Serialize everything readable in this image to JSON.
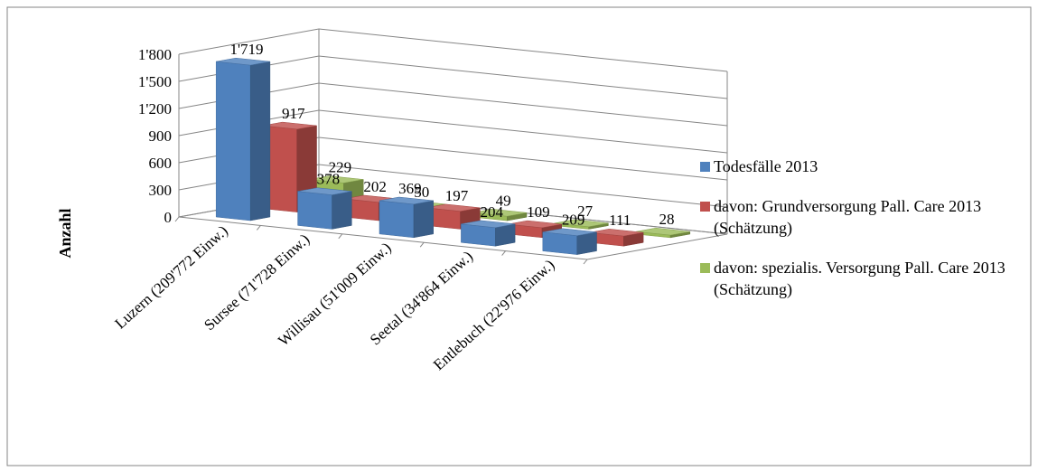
{
  "chart_data": {
    "type": "bar",
    "title": "",
    "xlabel": "",
    "ylabel": "Anzahl",
    "ylim": [
      0,
      1800
    ],
    "yticks": [
      "0",
      "300",
      "600",
      "900",
      "1'200",
      "1'500",
      "1'800"
    ],
    "grid": true,
    "legend_position": "right",
    "categories": [
      "Luzern (209'772 Einw.)",
      "Sursee (71'728 Einw.)",
      "Willisau (51'009 Einw.)",
      "Seetal (34'864 Einw.)",
      "Entlebuch (22'976 Einw.)"
    ],
    "series": [
      {
        "name": "Todesfälle 2013",
        "values": [
          1719,
          378,
          369,
          204,
          209
        ],
        "labels": [
          "1'719",
          "378",
          "369",
          "204",
          "209"
        ],
        "color": "#4f81bd"
      },
      {
        "name": "davon: Grundversorgung Pall. Care 2013 (Schätzung)",
        "values": [
          917,
          202,
          197,
          109,
          111
        ],
        "labels": [
          "917",
          "202",
          "197",
          "109",
          "111"
        ],
        "color": "#c0504d"
      },
      {
        "name": "davon: spezialis. Versorgung Pall. Care 2013 (Schätzung)",
        "values": [
          229,
          50,
          49,
          27,
          28
        ],
        "labels": [
          "229",
          "50",
          "49",
          "27",
          "28"
        ],
        "color": "#9bbb59"
      }
    ]
  }
}
